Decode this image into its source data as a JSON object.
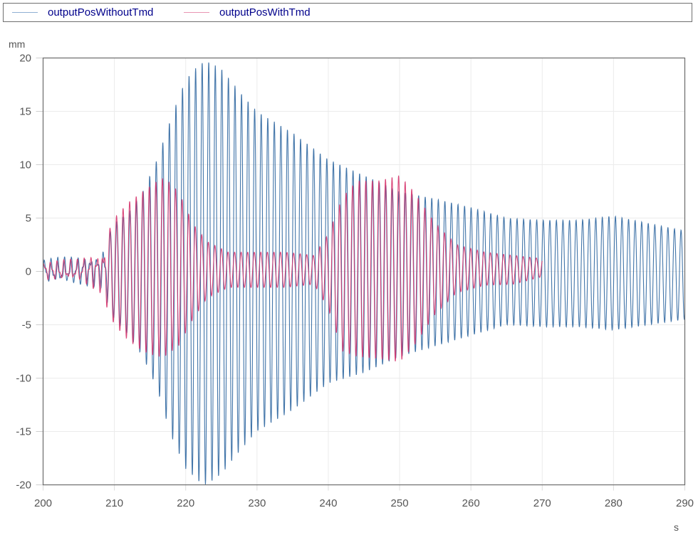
{
  "legend": {
    "items": [
      {
        "label": "outputPosWithoutTmd",
        "color": "#2e66a0"
      },
      {
        "label": "outputPosWithTmd",
        "color": "#d6336c"
      }
    ]
  },
  "axes": {
    "y_unit": "mm",
    "x_unit": "s",
    "x_ticks": [
      "200",
      "210",
      "220",
      "230",
      "240",
      "250",
      "260",
      "270",
      "280",
      "290"
    ],
    "y_ticks": [
      "20",
      "15",
      "10",
      "5",
      "0",
      "-5",
      "-10",
      "-15",
      "-20"
    ]
  },
  "chart_data": {
    "type": "line",
    "title": "",
    "xlabel": "s",
    "ylabel": "mm",
    "xlim": [
      200,
      290
    ],
    "ylim": [
      -20,
      20
    ],
    "grid": true,
    "legend_position": "top",
    "oscillation_period_s": 0.92,
    "series": [
      {
        "name": "outputPosWithoutTmd",
        "color": "#2e66a0",
        "x_range": [
          200,
          290
        ],
        "envelope_x": [
          200,
          205,
          208,
          210,
          212,
          214,
          216,
          218,
          220,
          222,
          223,
          225,
          228,
          230,
          235,
          240,
          245,
          250,
          255,
          260,
          265,
          270,
          275,
          280,
          285,
          290
        ],
        "envelope_max": [
          1.2,
          1.5,
          1.8,
          4.5,
          5.5,
          7.5,
          10.5,
          14.5,
          18.0,
          19.5,
          19.7,
          19.0,
          16.5,
          15.0,
          13.0,
          10.5,
          9.0,
          7.5,
          6.8,
          6.0,
          5.0,
          4.8,
          4.8,
          5.2,
          4.5,
          3.8
        ],
        "envelope_min": [
          -1.2,
          -1.3,
          -1.5,
          -4.5,
          -6.0,
          -8.0,
          -11.0,
          -15.5,
          -18.5,
          -19.8,
          -20.0,
          -19.0,
          -16.5,
          -15.0,
          -13.0,
          -10.5,
          -9.5,
          -8.0,
          -7.0,
          -6.0,
          -5.0,
          -5.2,
          -5.2,
          -5.5,
          -5.0,
          -4.5
        ]
      },
      {
        "name": "outputPosWithTmd",
        "color": "#d6336c",
        "x_range": [
          200,
          270
        ],
        "envelope_x": [
          200,
          205,
          208,
          210,
          212,
          214,
          216,
          217,
          219,
          221,
          223,
          226,
          230,
          234,
          238,
          240,
          242,
          244,
          247,
          250,
          252,
          255,
          258,
          262,
          266,
          270
        ],
        "envelope_max": [
          1.0,
          1.2,
          2.0,
          5.0,
          6.5,
          7.5,
          8.5,
          8.8,
          7.5,
          4.5,
          2.8,
          1.8,
          1.8,
          1.8,
          1.5,
          3.5,
          7.0,
          8.5,
          8.5,
          9.0,
          7.5,
          4.5,
          2.5,
          1.8,
          1.5,
          1.2
        ],
        "envelope_min": [
          -0.8,
          -1.0,
          -2.0,
          -5.0,
          -6.5,
          -7.5,
          -8.0,
          -8.0,
          -7.0,
          -4.5,
          -2.5,
          -1.5,
          -1.5,
          -1.5,
          -1.2,
          -3.5,
          -7.5,
          -8.0,
          -8.2,
          -8.5,
          -7.0,
          -4.0,
          -2.0,
          -1.3,
          -1.2,
          -0.5
        ]
      }
    ]
  }
}
